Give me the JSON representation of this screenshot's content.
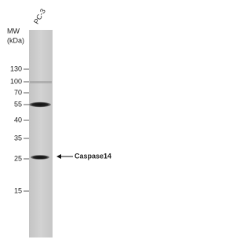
{
  "lane_label": "PC-3",
  "mw_label": [
    "MW",
    "(kDa)"
  ],
  "markers": [
    "130",
    "100",
    "70",
    "55",
    "40",
    "35",
    "25",
    "15"
  ],
  "band_label": "Caspase14"
}
